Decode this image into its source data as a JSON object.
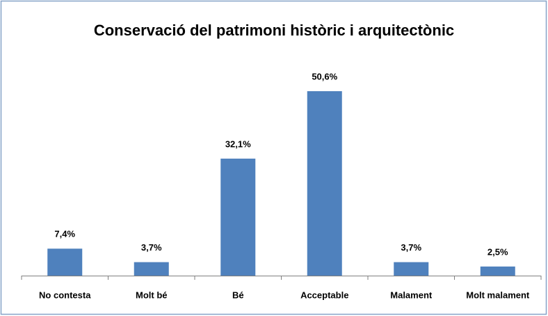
{
  "chart_data": {
    "type": "bar",
    "title": "Conservació del patrimoni històric i arquitectònic",
    "categories": [
      "No contesta",
      "Molt bé",
      "Bé",
      "Acceptable",
      "Malament",
      "Molt malament"
    ],
    "values": [
      7.4,
      3.7,
      32.1,
      50.6,
      3.7,
      2.5
    ],
    "value_labels": [
      "7,4%",
      "3,7%",
      "32,1%",
      "50,6%",
      "3,7%",
      "2,5%"
    ],
    "color": "#4f81bd"
  }
}
